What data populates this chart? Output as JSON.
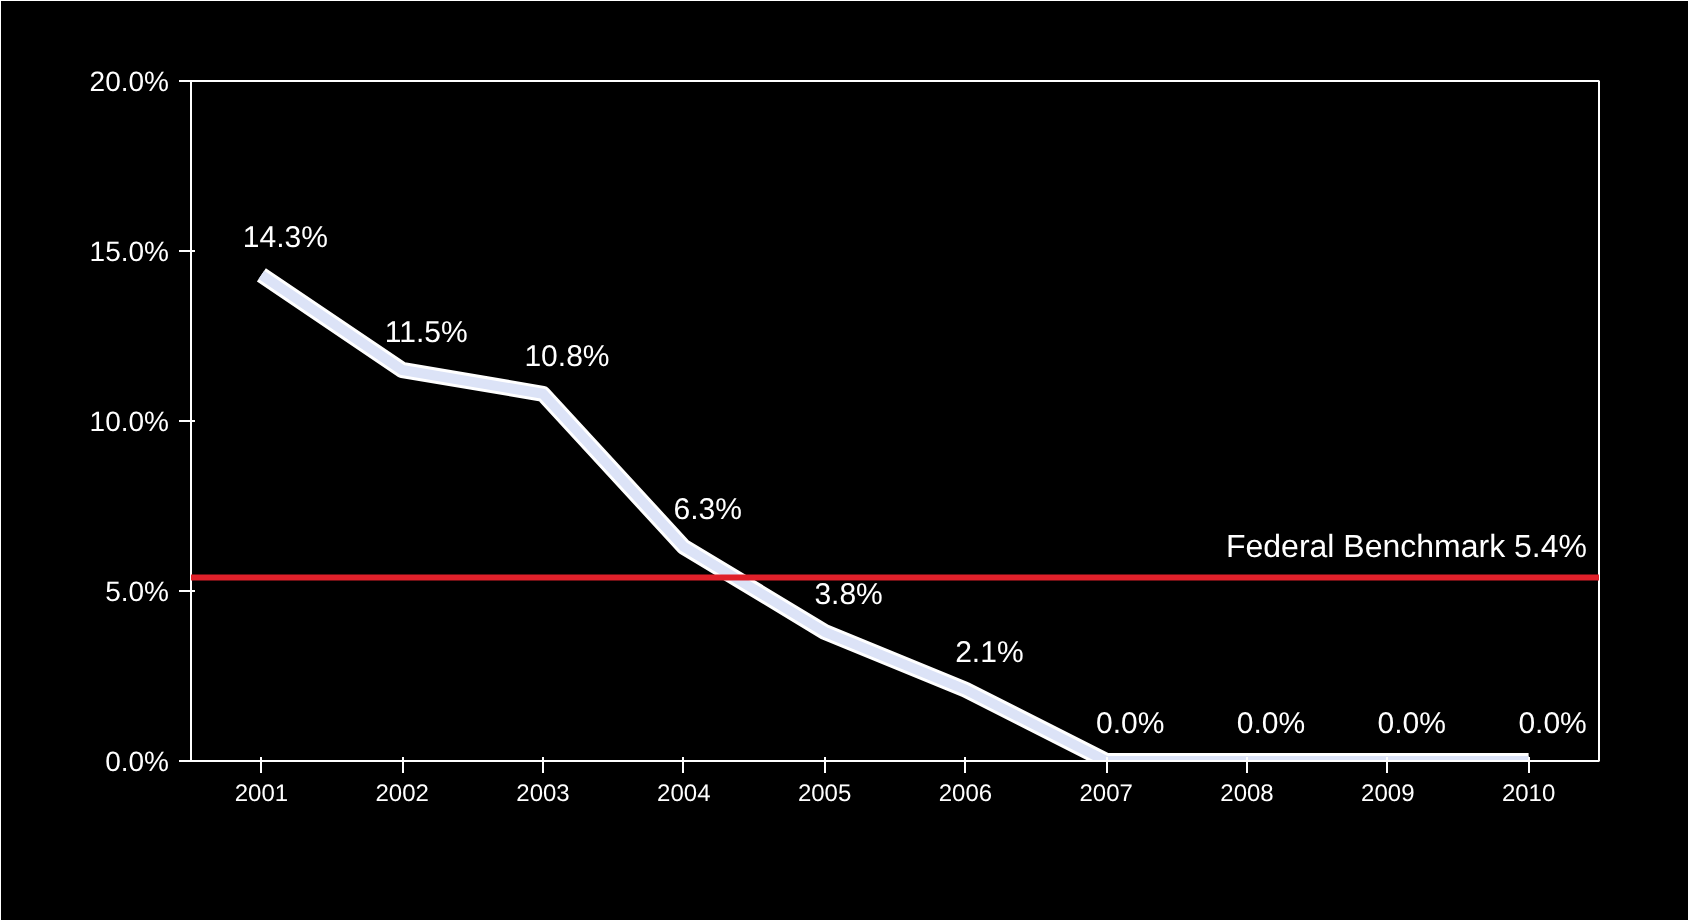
{
  "chart_data": {
    "type": "line",
    "categories": [
      "2001",
      "2002",
      "2003",
      "2004",
      "2005",
      "2006",
      "2007",
      "2008",
      "2009",
      "2010"
    ],
    "series": [
      {
        "color": "#dce3f7",
        "values": [
          14.3,
          11.5,
          10.8,
          6.3,
          3.8,
          2.1,
          0.0,
          0.0,
          0.0,
          0.0
        ],
        "value_labels": [
          "14.3%",
          "11.5%",
          "10.8%",
          "6.3%",
          "3.8%",
          "2.1%",
          "0.0%",
          "0.0%",
          "0.0%",
          "0.0%"
        ]
      }
    ],
    "ylim": [
      0,
      20
    ],
    "yticks": [
      {
        "value": 0,
        "label": "0.0%"
      },
      {
        "value": 5,
        "label": "5.0%"
      },
      {
        "value": 10,
        "label": "10.0%"
      },
      {
        "value": 15,
        "label": "15.0%"
      },
      {
        "value": 20,
        "label": "20.0%"
      }
    ],
    "ref_lines": [
      {
        "axis": "y",
        "value": 5.4,
        "label": "Federal Benchmark 5.4%",
        "color": "#e0202a"
      }
    ],
    "grid": false,
    "marker": "none",
    "line_style": "solid"
  }
}
